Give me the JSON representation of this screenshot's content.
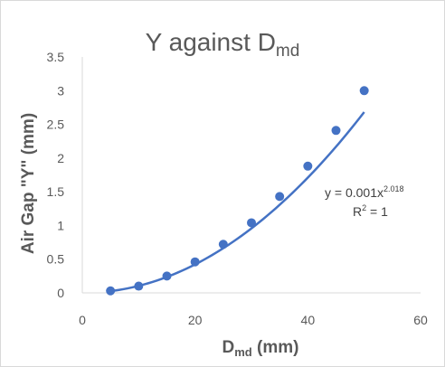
{
  "chart_data": {
    "type": "scatter",
    "title": {
      "main": "Y against D",
      "sub": "md"
    },
    "xlabel": {
      "main": "D",
      "sub": "md",
      "suffix": " (mm)"
    },
    "ylabel": "Air Gap \"Y\" (mm)",
    "xlim": [
      0,
      60
    ],
    "ylim": [
      0,
      3.5
    ],
    "x_ticks": [
      "0",
      "20",
      "40",
      "60"
    ],
    "y_ticks": [
      "0",
      "0.5",
      "1",
      "1.5",
      "2",
      "2.5",
      "3",
      "3.5"
    ],
    "grid": false,
    "series": [
      {
        "x": [
          5,
          10,
          15,
          20,
          25,
          30,
          35,
          40,
          45,
          50
        ],
        "y": [
          0.03,
          0.1,
          0.25,
          0.46,
          0.72,
          1.04,
          1.43,
          1.88,
          2.41,
          3.0
        ],
        "trendline": {
          "type": "power",
          "a": 0.001,
          "b": 2.018
        }
      }
    ],
    "annotations": {
      "equation_prefix": "y = 0.001x",
      "equation_exponent": "2.018",
      "r2_prefix": "R",
      "r2_exponent": "2",
      "r2_suffix": " = 1"
    },
    "colors": {
      "series": "#4472c4",
      "axis": "#d9d9d9",
      "text": "#595959"
    }
  }
}
